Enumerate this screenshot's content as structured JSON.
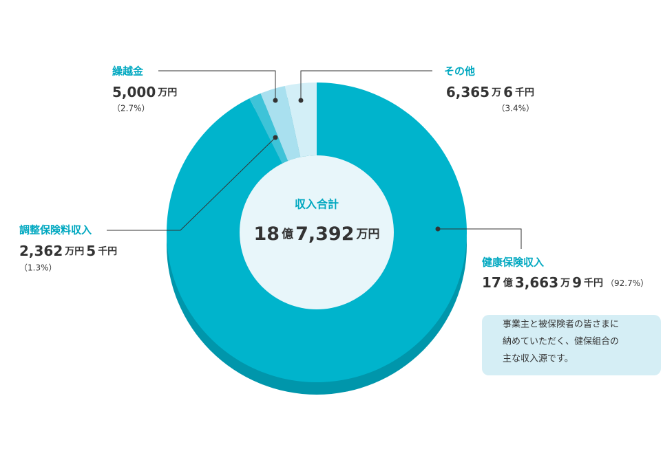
{
  "chart_data": {
    "type": "donut",
    "center_title": "収入合計",
    "center_amount": [
      "18",
      "億",
      "7,392",
      "万円"
    ],
    "categories": [
      "健康保険収入",
      "調整保険料収入",
      "繰越金",
      "その他"
    ],
    "values": [
      92.7,
      1.3,
      2.7,
      3.4
    ],
    "value_labels": [
      "（92.7%）",
      "（1.3%）",
      "（2.7%）",
      "（3.4%）"
    ],
    "amounts": [
      [
        "17",
        "億",
        "3,663",
        "万",
        "9",
        "千円"
      ],
      [
        "2,362",
        "万円",
        "5",
        "千円"
      ],
      [
        "5,000",
        "万円"
      ],
      [
        "6,365",
        "万",
        "6",
        "千円"
      ]
    ],
    "colors": [
      "#00b4cc",
      "#3ec3d8",
      "#a9e0ef",
      "#d3eff7"
    ],
    "note": [
      "事業主と被保険者の皆さまに",
      "納めていただく、健保組合の",
      "主な収入源です。"
    ]
  }
}
